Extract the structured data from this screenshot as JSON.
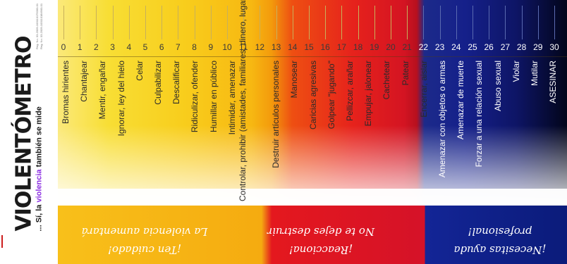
{
  "title": "VIOLENTÓMETRO",
  "subtitle_prefix": "... Sí, la",
  "subtitle_highlight": "violencia",
  "subtitle_suffix": "también se mide",
  "registration": [
    "Reg. No. 03-2009-100110175000-01",
    "Reg. No. 03-2009-100110184900-01"
  ],
  "scale_numbers": [
    "0",
    "1",
    "2",
    "3",
    "4",
    "5",
    "6",
    "7",
    "8",
    "9",
    "10",
    "11",
    "12",
    "13",
    "14",
    "15",
    "16",
    "17",
    "18",
    "19",
    "20",
    "21",
    "22",
    "23",
    "24",
    "25",
    "26",
    "27",
    "28",
    "29",
    "30"
  ],
  "actions": [
    "Bromas hirientes",
    "Chantajear",
    "Mentir, engañar",
    "Ignorar, ley del hielo",
    "Celar",
    "Culpabilizar",
    "Descalificar",
    "Ridiculizar, ofender",
    "Humillar en público",
    "Intimidar, amenazar",
    "Controlar, prohibir (amistades, familiares, dinero, lugares, apariencia, actividades, celular, mails y redes sociales)",
    "Destruir artículos personales",
    "Manosear",
    "Caricias agresivas",
    "Golpear \"jugando\"",
    "Pellizcar, arañar",
    "Empujar, jalonear",
    "Cachetear",
    "Patear",
    "Encerrar, aislar",
    "Amenazar con objetos o armas",
    "Amenazar de muerte",
    "Forzar a una relación sexual",
    "Abuso sexual",
    "Violar",
    "Mutilar",
    "ASESINAR"
  ],
  "messages": {
    "yellow": [
      "¡Ten cuidado!",
      "La violencia aumentará"
    ],
    "red": [
      "¡Reacciona!",
      "No te dejes destruir"
    ],
    "blue": [
      "¡Necesitas ayuda",
      "profesional!"
    ]
  },
  "colors": {
    "yellow": "#f8d21c",
    "orange": "#f39a0c",
    "red": "#e01e1e",
    "blue": "#15208a",
    "black": "#02051a",
    "highlight_purple": "#8a2be2"
  }
}
